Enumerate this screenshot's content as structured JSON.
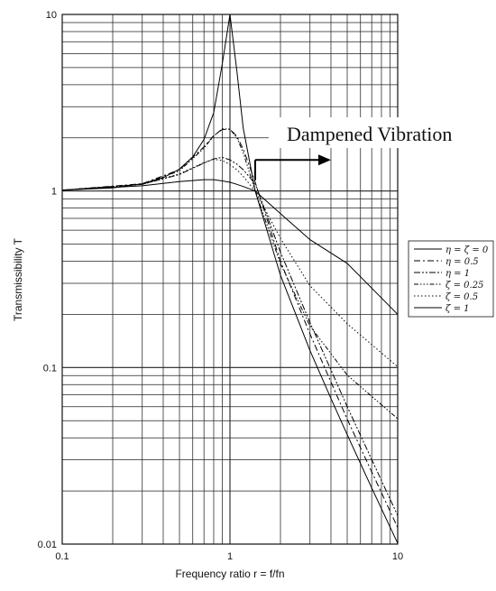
{
  "chart_data": {
    "type": "line",
    "xlabel": "Frequency ratio r = f/fn",
    "ylabel": "Transmissibility T",
    "x_scale": "log",
    "y_scale": "log",
    "xlim": [
      0.1,
      10
    ],
    "ylim": [
      0.01,
      10
    ],
    "x_ticks": [
      {
        "value": 0.1,
        "label": "0.1"
      },
      {
        "value": 1,
        "label": "1"
      },
      {
        "value": 10,
        "label": "10"
      }
    ],
    "y_ticks": [
      {
        "value": 0.01,
        "label": "0.01"
      },
      {
        "value": 0.1,
        "label": "0.1"
      },
      {
        "value": 1,
        "label": "1"
      },
      {
        "value": 10,
        "label": "10"
      }
    ],
    "grid": true,
    "legend_position": "right",
    "annotation": {
      "text": "Dampened Vibration",
      "x_start": 1.414,
      "x_end": 4.0,
      "y": 1.5
    },
    "series": [
      {
        "name": "η = ζ = 0",
        "style": "solid",
        "x": [
          0.1,
          0.2,
          0.3,
          0.4,
          0.5,
          0.6,
          0.7,
          0.8,
          0.9,
          1.0,
          1.1,
          1.2,
          1.414,
          2.0,
          3.0,
          4.0,
          5.0,
          7.0,
          10.0
        ],
        "y": [
          1.01,
          1.04,
          1.1,
          1.19,
          1.33,
          1.56,
          1.96,
          2.78,
          5.26,
          10,
          4.76,
          2.27,
          1.0,
          0.333,
          0.125,
          0.0667,
          0.0417,
          0.0208,
          0.0101
        ]
      },
      {
        "name": "η = 0.5",
        "style": "dashdot",
        "x": [
          0.1,
          0.3,
          0.5,
          0.7,
          0.8,
          0.9,
          1.0,
          1.1,
          1.2,
          1.414,
          2.0,
          3.0,
          5.0,
          10.0
        ],
        "y": [
          1.01,
          1.1,
          1.32,
          1.78,
          2.06,
          2.23,
          2.24,
          2.04,
          1.73,
          1.12,
          0.4,
          0.155,
          0.051,
          0.0124
        ]
      },
      {
        "name": "η = 1",
        "style": "dashdotdot",
        "x": [
          0.1,
          0.3,
          0.5,
          0.7,
          0.8,
          0.9,
          1.0,
          1.1,
          1.2,
          1.414,
          2.0,
          3.0,
          5.0,
          10.0
        ],
        "y": [
          1.01,
          1.09,
          1.24,
          1.44,
          1.52,
          1.55,
          1.5,
          1.42,
          1.32,
          1.1,
          0.45,
          0.18,
          0.06,
          0.0145
        ]
      },
      {
        "name": "ζ = 0.25",
        "style": "dashdotdotdot",
        "x": [
          0.1,
          0.3,
          0.5,
          0.7,
          0.8,
          0.9,
          1.0,
          1.1,
          1.2,
          1.414,
          2.0,
          3.0,
          5.0,
          10.0
        ],
        "y": [
          1.01,
          1.09,
          1.3,
          1.75,
          2.05,
          2.25,
          2.24,
          2.0,
          1.65,
          1.0,
          0.387,
          0.172,
          0.0906,
          0.0513
        ]
      },
      {
        "name": "ζ = 0.5",
        "style": "dotted",
        "x": [
          0.1,
          0.3,
          0.5,
          0.7,
          0.8,
          0.9,
          1.0,
          1.1,
          1.2,
          1.414,
          2.0,
          3.0,
          5.0,
          10.0
        ],
        "y": [
          1.01,
          1.09,
          1.25,
          1.45,
          1.51,
          1.49,
          1.41,
          1.32,
          1.21,
          1.0,
          0.539,
          0.291,
          0.177,
          0.101
        ]
      },
      {
        "name": "ζ = 1",
        "style": "solid",
        "x": [
          0.1,
          0.3,
          0.5,
          0.7,
          0.8,
          0.9,
          1.0,
          1.1,
          1.2,
          1.414,
          2.0,
          3.0,
          5.0,
          10.0
        ],
        "y": [
          1.01,
          1.07,
          1.13,
          1.16,
          1.16,
          1.14,
          1.12,
          1.09,
          1.06,
          1.0,
          0.745,
          0.53,
          0.389,
          0.2
        ]
      }
    ]
  }
}
